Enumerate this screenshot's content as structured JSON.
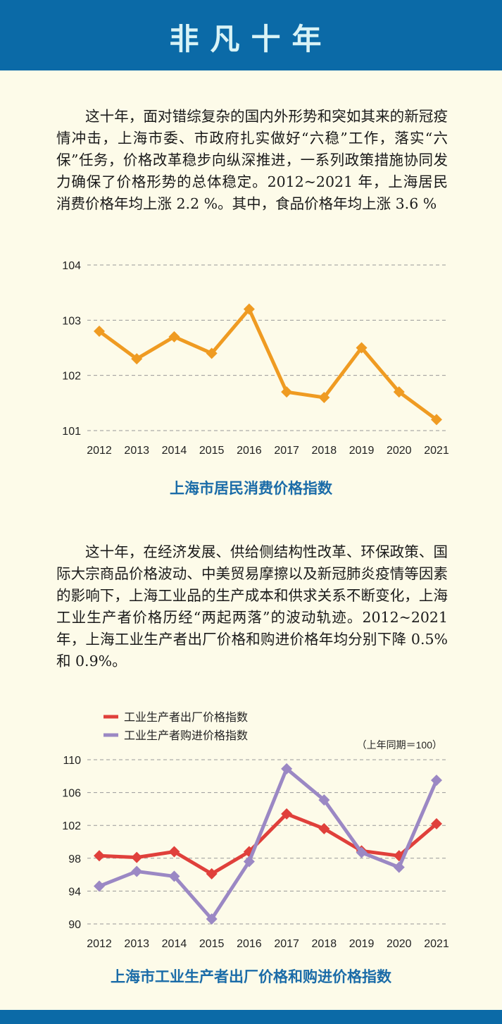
{
  "header": {
    "title": "非凡十年"
  },
  "paragraphs": {
    "p1": "这十年，面对错综复杂的国内外形势和突如其来的新冠疫情冲击，上海市委、市政府扎实做好“六稳”工作，落实“六保”任务，价格改革稳步向纵深推进，一系列政策措施协同发力确保了价格形势的总体稳定。2012~2021 年，上海居民消费价格年均上涨 2.2 %。其中，食品价格年均上涨 3.6 %",
    "p2": "这十年，在经济发展、供给侧结构性改革、环保政策、国际大宗商品价格波动、中美贸易摩擦以及新冠肺炎疫情等因素的影响下，上海工业品的生产成本和供求关系不断变化，上海工业生产者价格历经“两起两落”的波动轨迹。2012~2021 年，上海工业生产者出厂价格和购进价格年均分别下降 0.5% 和 0.9%。"
  },
  "chart_data": [
    {
      "type": "line",
      "title": "上海市居民消费价格指数",
      "categories": [
        "2012",
        "2013",
        "2014",
        "2015",
        "2016",
        "2017",
        "2018",
        "2019",
        "2020",
        "2021"
      ],
      "series": [
        {
          "values": [
            102.8,
            102.3,
            102.7,
            102.4,
            103.2,
            101.7,
            101.6,
            102.5,
            101.7,
            101.2
          ],
          "color": "#ef9b22"
        }
      ],
      "yticks": [
        "101",
        "102",
        "103",
        "104"
      ],
      "ylim": [
        101,
        104
      ],
      "grid": "dashed-horizontal"
    },
    {
      "type": "line",
      "title": "上海市工业生产者出厂价格和购进价格指数",
      "unit_note": "（上年同期＝100）",
      "categories": [
        "2012",
        "2013",
        "2014",
        "2015",
        "2016",
        "2017",
        "2018",
        "2019",
        "2020",
        "2021"
      ],
      "series": [
        {
          "name": "工业生产者出厂价格指数",
          "values": [
            98.3,
            98.1,
            98.8,
            96.1,
            98.8,
            103.4,
            101.6,
            98.9,
            98.3,
            102.2
          ],
          "color": "#e0403b"
        },
        {
          "name": "工业生产者购进价格指数",
          "values": [
            94.6,
            96.4,
            95.8,
            90.6,
            97.6,
            108.9,
            105.1,
            98.7,
            96.9,
            107.5
          ],
          "color": "#9b88c4"
        }
      ],
      "yticks": [
        "90",
        "94",
        "98",
        "102",
        "106",
        "110"
      ],
      "ylim": [
        90,
        110
      ],
      "legend": "top-left",
      "grid": "dashed-horizontal"
    }
  ]
}
